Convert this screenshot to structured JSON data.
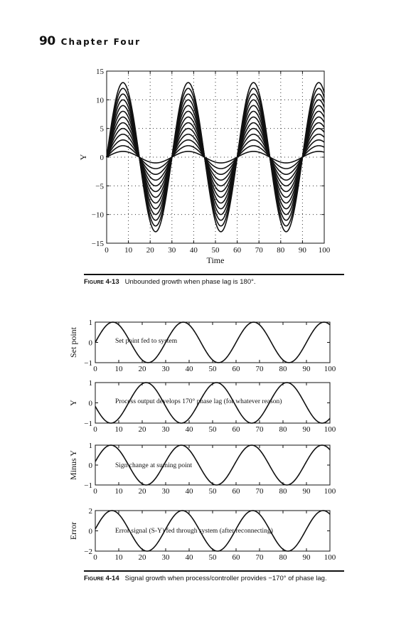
{
  "header": {
    "page_number": "90",
    "chapter": "Chapter Four"
  },
  "figure1": {
    "label": "Figure 4-13",
    "caption": "Unbounded growth when phase lag is 180°.",
    "chart_data": {
      "type": "line",
      "title": "",
      "xlabel": "Time",
      "ylabel": "Y",
      "xlim": [
        0,
        100
      ],
      "ylim": [
        -15,
        15
      ],
      "xticks": [
        "0",
        "10",
        "20",
        "30",
        "40",
        "50",
        "60",
        "70",
        "80",
        "90",
        "100"
      ],
      "yticks": [
        "15",
        "10",
        "5",
        "0",
        "−5",
        "−10",
        "−15"
      ],
      "grid": "dotted",
      "period": 30,
      "phase_deg": 0,
      "amplitudes": [
        1,
        2,
        3,
        4,
        5,
        6,
        7,
        8,
        9,
        10,
        11,
        12,
        13
      ]
    }
  },
  "figure2": {
    "label": "Figure 4-14",
    "caption": "Signal growth when process/controller provides −170° of phase lag.",
    "panels": [
      {
        "ylabel": "Set point",
        "annotation": "Set point fed to system",
        "chart_data": {
          "type": "line",
          "xlim": [
            0,
            100
          ],
          "ylim": [
            -1,
            1
          ],
          "yticks": [
            "1",
            "0",
            "−1"
          ],
          "xticks": [
            "0",
            "10",
            "20",
            "30",
            "40",
            "50",
            "60",
            "70",
            "80",
            "90",
            "100"
          ],
          "amplitude": 1,
          "period": 30,
          "phase_deg": 0
        }
      },
      {
        "ylabel": "Y",
        "annotation": "Process output develops 170° phase lag (for whatever reason)",
        "chart_data": {
          "type": "line",
          "xlim": [
            0,
            100
          ],
          "ylim": [
            -1,
            1
          ],
          "yticks": [
            "1",
            "0",
            "−1"
          ],
          "xticks": [
            "0",
            "10",
            "20",
            "30",
            "40",
            "50",
            "60",
            "70",
            "80",
            "90",
            "100"
          ],
          "amplitude": 1,
          "period": 30,
          "phase_deg": -170
        }
      },
      {
        "ylabel": "Minus Y",
        "annotation": "Sign change at suming point",
        "chart_data": {
          "type": "line",
          "xlim": [
            0,
            100
          ],
          "ylim": [
            -1,
            1
          ],
          "yticks": [
            "1",
            "0",
            "−1"
          ],
          "xticks": [
            "0",
            "10",
            "20",
            "30",
            "40",
            "50",
            "60",
            "70",
            "80",
            "90",
            "100"
          ],
          "amplitude": 1,
          "period": 30,
          "phase_deg": 10
        }
      },
      {
        "ylabel": "Error",
        "annotation": "Error signal (S-Y) fed through system (after reconnecting)",
        "chart_data": {
          "type": "line",
          "xlim": [
            0,
            100
          ],
          "ylim": [
            -2,
            2
          ],
          "yticks": [
            "2",
            "0",
            "−2"
          ],
          "xticks": [
            "0",
            "10",
            "20",
            "30",
            "40",
            "50",
            "60",
            "70",
            "80",
            "90",
            "100"
          ],
          "amplitude": 2,
          "period": 30,
          "phase_deg": 5
        }
      }
    ]
  }
}
